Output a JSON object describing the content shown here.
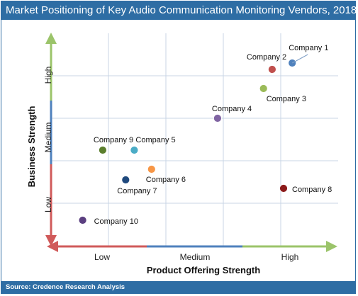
{
  "title": "Market Positioning of Key Audio Communication Monitoring Vendors, 2018",
  "source": "Source: Credence Research Analysis",
  "colors": {
    "banner": "#2e6da4",
    "grid": "#c9d6e6",
    "arrow_green": "#9bc46a",
    "arrow_red": "#d05a5a",
    "arrow_blue": "#4f81bd"
  },
  "chart_data": {
    "type": "scatter",
    "title": "Market Positioning of Key Audio Communication Monitoring Vendors, 2018",
    "xlabel": "Product Offering Strength",
    "ylabel": "Business Strength",
    "x_categories": [
      "Low",
      "Medium",
      "High"
    ],
    "y_categories": [
      "Low",
      "Medium",
      "High"
    ],
    "xlim": [
      0,
      10
    ],
    "ylim": [
      0,
      10
    ],
    "grid": true,
    "points": [
      {
        "label": "Company 1",
        "x": 8.4,
        "y": 8.6,
        "color": "#4f81bd"
      },
      {
        "label": "Company 2",
        "x": 7.7,
        "y": 8.3,
        "color": "#c0504d"
      },
      {
        "label": "Company 3",
        "x": 7.4,
        "y": 7.4,
        "color": "#9bbb59"
      },
      {
        "label": "Company 4",
        "x": 5.8,
        "y": 6.0,
        "color": "#8064a2"
      },
      {
        "label": "Company 5",
        "x": 2.9,
        "y": 4.5,
        "color": "#4bacc6"
      },
      {
        "label": "Company 6",
        "x": 3.5,
        "y": 3.6,
        "color": "#f79646"
      },
      {
        "label": "Company 7",
        "x": 2.6,
        "y": 3.1,
        "color": "#1f497d"
      },
      {
        "label": "Company 8",
        "x": 8.1,
        "y": 2.7,
        "color": "#8b1a1a"
      },
      {
        "label": "Company 9",
        "x": 1.8,
        "y": 4.5,
        "color": "#5b7f2e"
      },
      {
        "label": "Company 10",
        "x": 1.1,
        "y": 1.2,
        "color": "#5b3f80"
      }
    ]
  }
}
